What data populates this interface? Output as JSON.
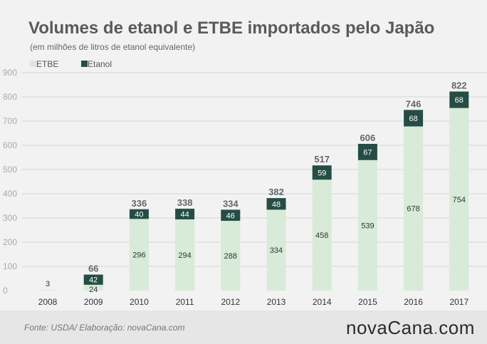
{
  "chart_data": {
    "type": "bar",
    "stacked": true,
    "title": "Volumes de etanol e ETBE importados pelo Japão",
    "subtitle": "(em milhões de litros de etanol equivalente)",
    "categories": [
      "2008",
      "2009",
      "2010",
      "2011",
      "2012",
      "2013",
      "2014",
      "2015",
      "2016",
      "2017"
    ],
    "series": [
      {
        "name": "ETBE",
        "values": [
          3,
          24,
          296,
          294,
          288,
          334,
          458,
          539,
          678,
          754
        ],
        "color": "#d8ead8"
      },
      {
        "name": "Etanol",
        "values": [
          0,
          42,
          40,
          44,
          46,
          48,
          59,
          67,
          68,
          68
        ],
        "color": "#254d45"
      }
    ],
    "etbe_labels": [
      "3",
      "24",
      "296",
      "294",
      "288",
      "334",
      "458",
      "539",
      "678",
      "754"
    ],
    "etanol_labels": [
      "",
      "42",
      "40",
      "44",
      "46",
      "48",
      "59",
      "67",
      "68",
      "68"
    ],
    "totals": [
      "",
      "66",
      "336",
      "338",
      "334",
      "382",
      "517",
      "606",
      "746",
      "822"
    ],
    "yticks": [
      "0",
      "100",
      "200",
      "300",
      "400",
      "500",
      "600",
      "700",
      "800",
      "900"
    ],
    "ylim": [
      0,
      900
    ],
    "grid": true,
    "legend_position": "top-left"
  },
  "footer": {
    "source": "Fonte:  USDA/  Elaboração:  novaCana.com",
    "brand_prefix": "nova",
    "brand_main": "Cana",
    "brand_dot": ".",
    "brand_suffix": "com"
  }
}
